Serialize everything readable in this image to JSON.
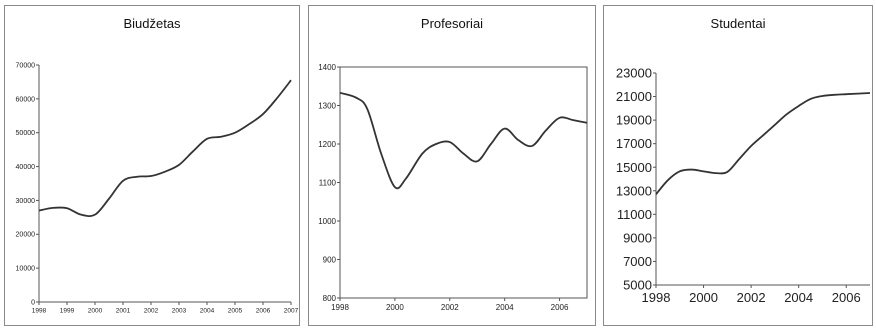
{
  "chart_data": [
    {
      "type": "line",
      "title": "Biudžetas",
      "ylim": [
        0,
        70000
      ],
      "xlim": [
        1998,
        2007
      ],
      "y_ticks": [
        "0",
        "10000",
        "20000",
        "30000",
        "40000",
        "50000",
        "60000",
        "70000"
      ],
      "x_ticks": [
        "1998",
        "1999",
        "2000",
        "2001",
        "2002",
        "2003",
        "2004",
        "2005",
        "2006",
        "2007"
      ],
      "points": [
        [
          1998,
          27000
        ],
        [
          1998.5,
          27800
        ],
        [
          1999,
          27700
        ],
        [
          1999.5,
          25800
        ],
        [
          2000,
          25800
        ],
        [
          2000.5,
          30500
        ],
        [
          2001,
          35800
        ],
        [
          2001.5,
          37000
        ],
        [
          2002,
          37200
        ],
        [
          2002.5,
          38500
        ],
        [
          2003,
          40500
        ],
        [
          2003.5,
          44500
        ],
        [
          2004,
          48200
        ],
        [
          2004.5,
          48800
        ],
        [
          2005,
          50000
        ],
        [
          2005.5,
          52500
        ],
        [
          2006,
          55500
        ],
        [
          2006.5,
          60200
        ],
        [
          2007,
          65500
        ]
      ],
      "line_color": "#333333"
    },
    {
      "type": "line",
      "title": "Profesoriai",
      "ylim": [
        800,
        1400
      ],
      "xlim": [
        1998,
        2007
      ],
      "y_ticks": [
        "800",
        "900",
        "1000",
        "1100",
        "1200",
        "1300",
        "1400"
      ],
      "x_ticks": [
        "1998",
        "2000",
        "2002",
        "2004",
        "2006"
      ],
      "points": [
        [
          1998,
          1333
        ],
        [
          1998.6,
          1320
        ],
        [
          1999,
          1290
        ],
        [
          1999.5,
          1175
        ],
        [
          2000,
          1088
        ],
        [
          2000.4,
          1110
        ],
        [
          2001,
          1175
        ],
        [
          2001.5,
          1200
        ],
        [
          2002,
          1205
        ],
        [
          2002.5,
          1175
        ],
        [
          2003,
          1155
        ],
        [
          2003.5,
          1200
        ],
        [
          2004,
          1240
        ],
        [
          2004.5,
          1210
        ],
        [
          2005,
          1195
        ],
        [
          2005.5,
          1235
        ],
        [
          2006,
          1268
        ],
        [
          2006.5,
          1262
        ],
        [
          2007,
          1255
        ]
      ],
      "line_color": "#333333"
    },
    {
      "type": "line",
      "title": "Studentai",
      "ylim": [
        5000,
        23000
      ],
      "xlim": [
        1998,
        2007
      ],
      "y_ticks": [
        "5000",
        "7000",
        "9000",
        "11000",
        "13000",
        "15000",
        "17000",
        "19000",
        "21000",
        "23000"
      ],
      "x_ticks": [
        "1998",
        "2000",
        "2002",
        "2004",
        "2006"
      ],
      "points": [
        [
          1998,
          12700
        ],
        [
          1998.5,
          13900
        ],
        [
          1999,
          14650
        ],
        [
          1999.5,
          14800
        ],
        [
          2000,
          14650
        ],
        [
          2000.5,
          14500
        ],
        [
          2001,
          14600
        ],
        [
          2001.5,
          15700
        ],
        [
          2002,
          16800
        ],
        [
          2002.5,
          17700
        ],
        [
          2003,
          18600
        ],
        [
          2003.5,
          19500
        ],
        [
          2004,
          20200
        ],
        [
          2004.5,
          20800
        ],
        [
          2005,
          21050
        ],
        [
          2005.5,
          21150
        ],
        [
          2006,
          21200
        ],
        [
          2006.5,
          21250
        ],
        [
          2007,
          21300
        ]
      ],
      "line_color": "#333333"
    }
  ]
}
